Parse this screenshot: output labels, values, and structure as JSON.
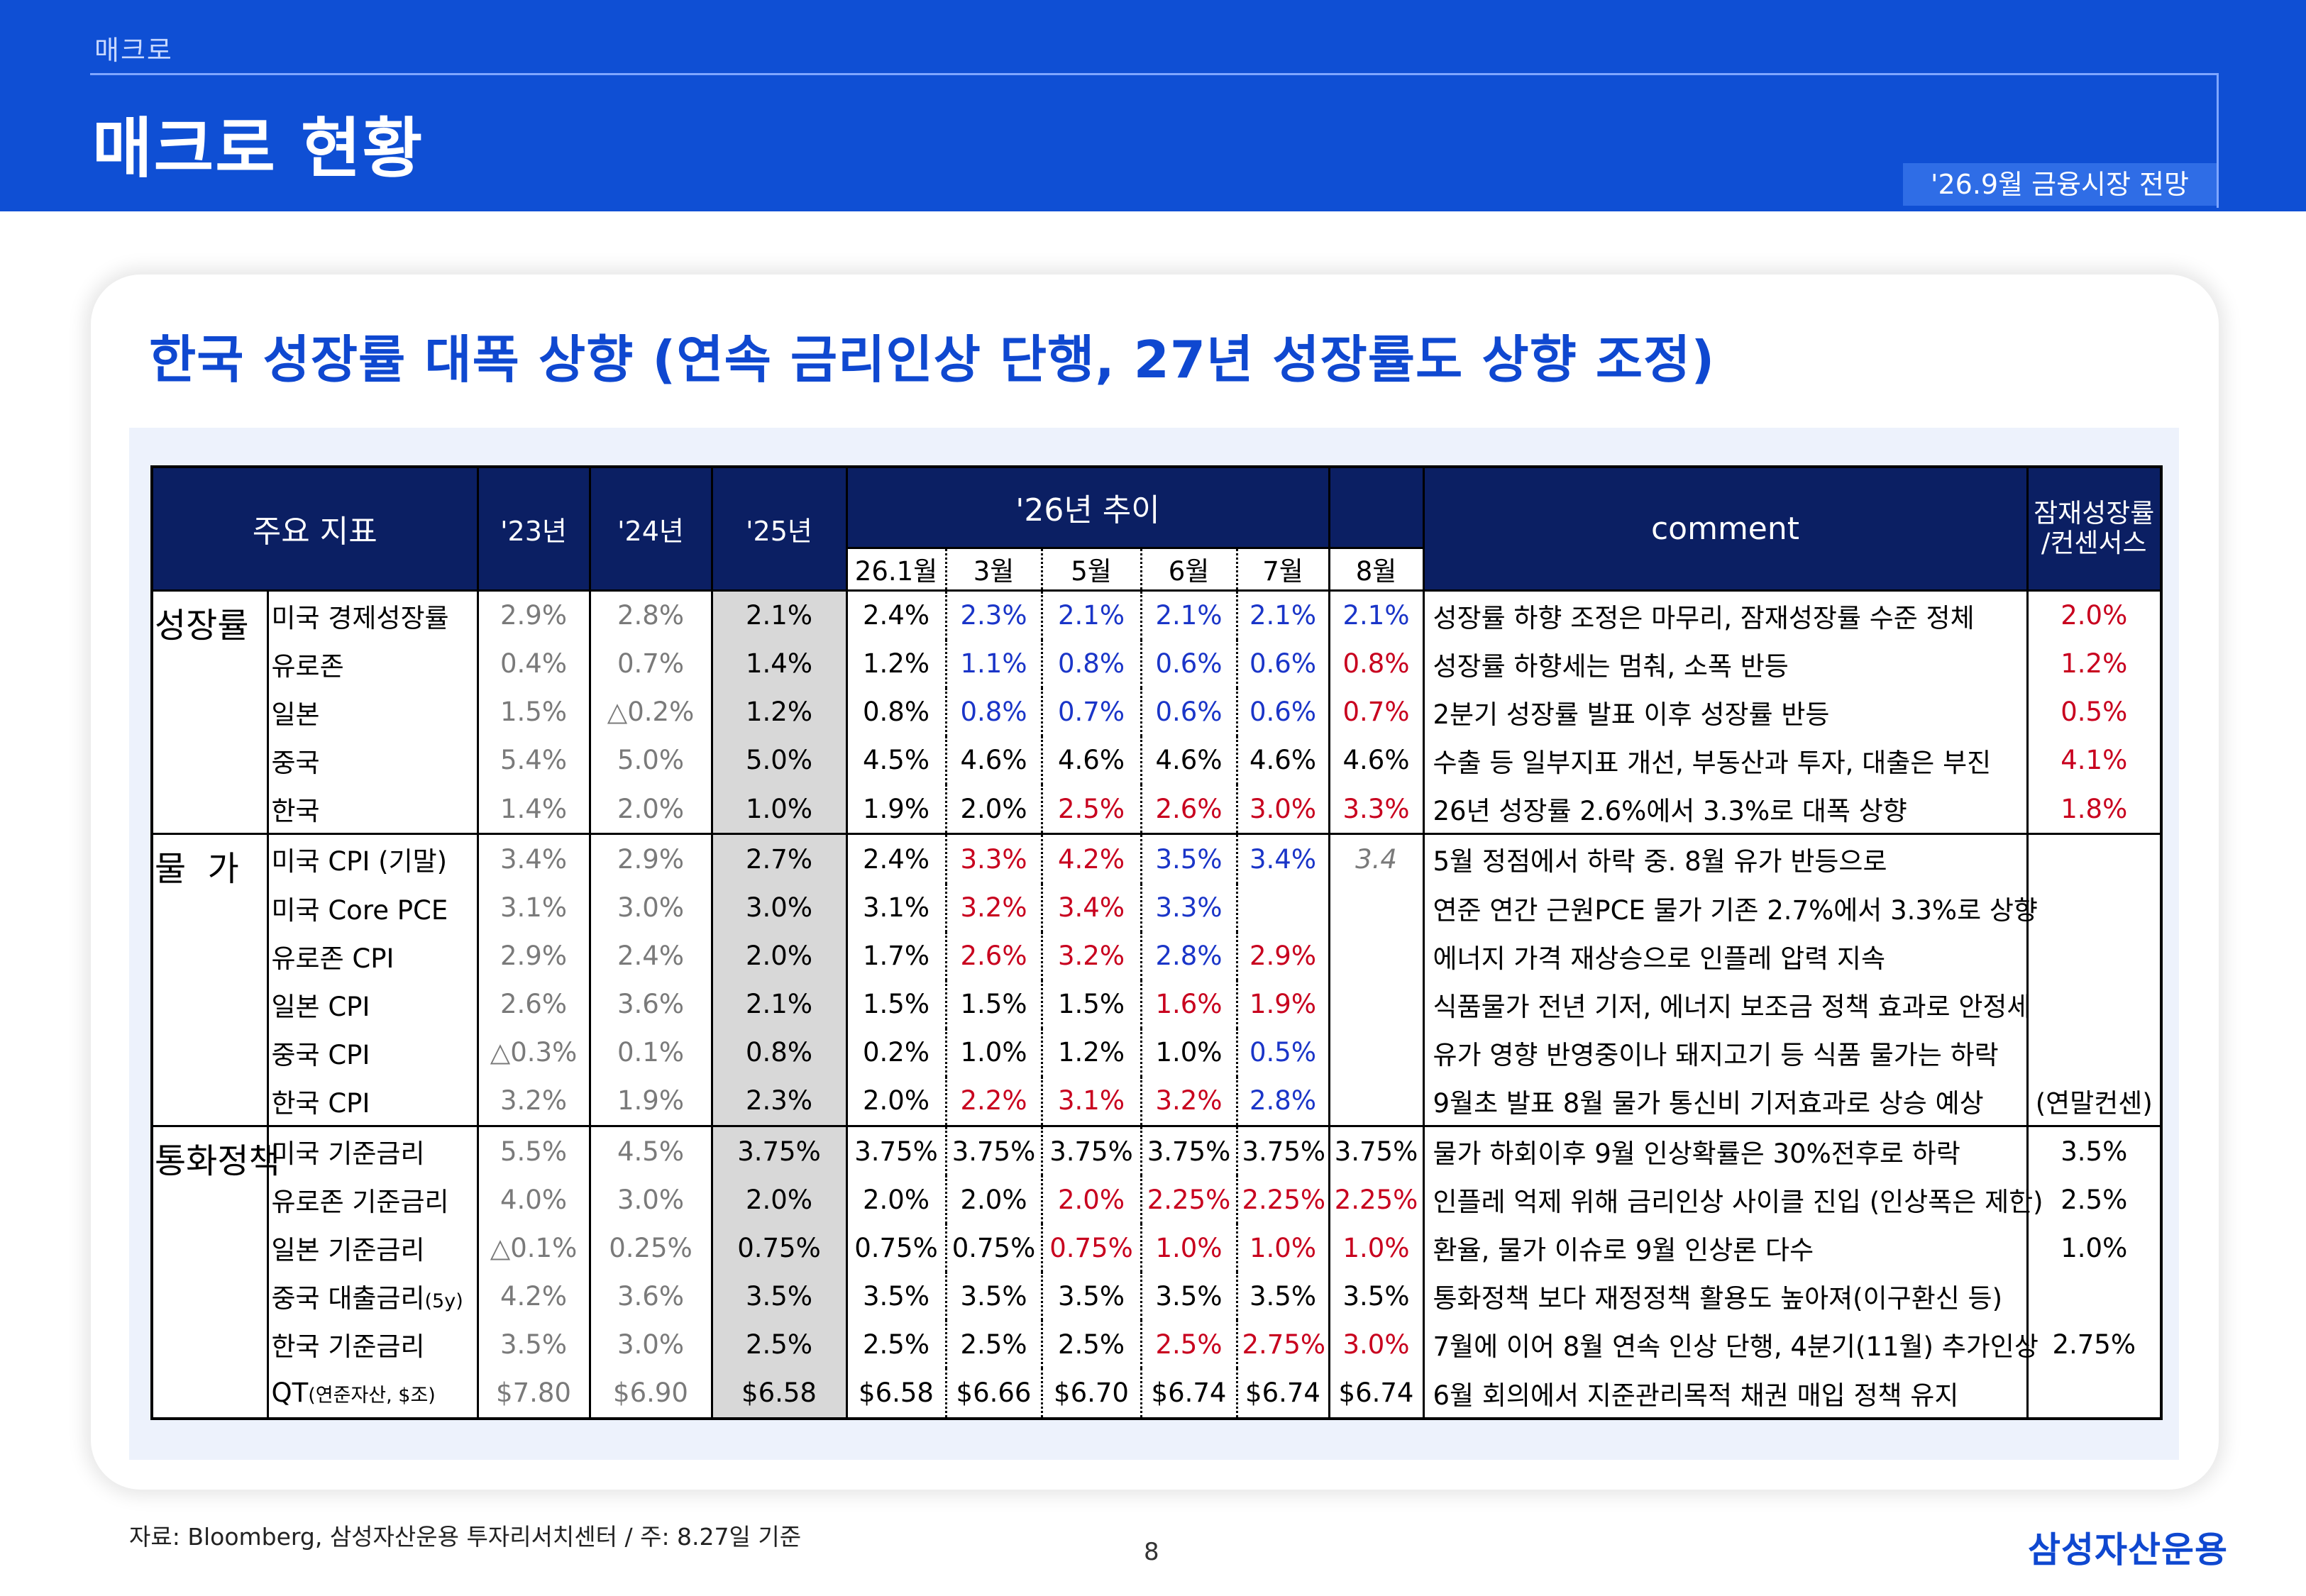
{
  "header": {
    "crumb": "매크로",
    "title": "매크로 현황",
    "report": "'26.9월 금융시장 전망"
  },
  "headline": "한국 성장률 대폭 상향 (연속 금리인상 단행, 27년 성장률도 상향 조정)",
  "table": {
    "headers": {
      "indicator": "주요 지표",
      "y23": "'23년",
      "y24": "'24년",
      "y25": "'25년",
      "trend": "'26년 추이",
      "comment": "comment",
      "potential": "잠재성장률\n/컨센서스",
      "months": [
        "26.1월",
        "3월",
        "5월",
        "6월",
        "7월",
        "8월"
      ]
    },
    "groups": [
      {
        "name": "성장률",
        "rows": [
          {
            "name": "미국 경제성장률",
            "y23": "2.9%",
            "y24": "2.8%",
            "y25": "2.1%",
            "m": [
              "2.4%",
              "2.3%",
              "2.1%",
              "2.1%",
              "2.1%",
              "2.1%"
            ],
            "comment": "성장률 하향 조정은 마무리, 잠재성장률 수준 정체",
            "potential": "2.0%"
          },
          {
            "name": "유로존",
            "y23": "0.4%",
            "y24": "0.7%",
            "y25": "1.4%",
            "m": [
              "1.2%",
              "1.1%",
              "0.8%",
              "0.6%",
              "0.6%",
              "0.8%"
            ],
            "comment": "성장률 하향세는 멈춰, 소폭 반등",
            "potential": "1.2%"
          },
          {
            "name": "일본",
            "y23": "1.5%",
            "y24": "△0.2%",
            "y25": "1.2%",
            "m": [
              "0.8%",
              "0.8%",
              "0.7%",
              "0.6%",
              "0.6%",
              "0.7%"
            ],
            "comment": "2분기 성장률 발표 이후 성장률 반등",
            "potential": "0.5%"
          },
          {
            "name": "중국",
            "y23": "5.4%",
            "y24": "5.0%",
            "y25": "5.0%",
            "m": [
              "4.5%",
              "4.6%",
              "4.6%",
              "4.6%",
              "4.6%",
              "4.6%"
            ],
            "comment": "수출 등 일부지표 개선, 부동산과 투자, 대출은 부진",
            "potential": "4.1%"
          },
          {
            "name": "한국",
            "y23": "1.4%",
            "y24": "2.0%",
            "y25": "1.0%",
            "m": [
              "1.9%",
              "2.0%",
              "2.5%",
              "2.6%",
              "3.0%",
              "3.3%"
            ],
            "comment": "26년 성장률 2.6%에서 3.3%로 대폭 상향",
            "potential": "1.8%"
          }
        ]
      },
      {
        "name": "물  가",
        "rows": [
          {
            "name": "미국 CPI (기말)",
            "y23": "3.4%",
            "y24": "2.9%",
            "y25": "2.7%",
            "m": [
              "2.4%",
              "3.3%",
              "4.2%",
              "3.5%",
              "3.4%",
              "3.4"
            ],
            "comment": "5월 정점에서 하락 중. 8월 유가 반등으로",
            "potential": ""
          },
          {
            "name": "미국 Core PCE",
            "y23": "3.1%",
            "y24": "3.0%",
            "y25": "3.0%",
            "m": [
              "3.1%",
              "3.2%",
              "3.4%",
              "3.3%",
              "",
              ""
            ],
            "comment": "연준 연간 근원PCE 물가 기존 2.7%에서 3.3%로 상향",
            "potential": ""
          },
          {
            "name": "유로존 CPI",
            "y23": "2.9%",
            "y24": "2.4%",
            "y25": "2.0%",
            "m": [
              "1.7%",
              "2.6%",
              "3.2%",
              "2.8%",
              "2.9%",
              ""
            ],
            "comment": "에너지 가격 재상승으로 인플레 압력 지속",
            "potential": ""
          },
          {
            "name": "일본 CPI",
            "y23": "2.6%",
            "y24": "3.6%",
            "y25": "2.1%",
            "m": [
              "1.5%",
              "1.5%",
              "1.5%",
              "1.6%",
              "1.9%",
              ""
            ],
            "comment": "식품물가 전년 기저, 에너지 보조금 정책 효과로 안정세",
            "potential": ""
          },
          {
            "name": "중국 CPI",
            "y23": "△0.3%",
            "y24": "0.1%",
            "y25": "0.8%",
            "m": [
              "0.2%",
              "1.0%",
              "1.2%",
              "1.0%",
              "0.5%",
              ""
            ],
            "comment": "유가 영향 반영중이나 돼지고기 등 식품 물가는 하락",
            "potential": ""
          },
          {
            "name": "한국 CPI",
            "y23": "3.2%",
            "y24": "1.9%",
            "y25": "2.3%",
            "m": [
              "2.0%",
              "2.2%",
              "3.1%",
              "3.2%",
              "2.8%",
              ""
            ],
            "comment": "9월초 발표 8월 물가 통신비 기저효과로 상승 예상",
            "potential": "(연말컨센)"
          }
        ]
      },
      {
        "name": "통화정책",
        "rows": [
          {
            "name": "미국 기준금리",
            "y23": "5.5%",
            "y24": "4.5%",
            "y25": "3.75%",
            "m": [
              "3.75%",
              "3.75%",
              "3.75%",
              "3.75%",
              "3.75%",
              "3.75%"
            ],
            "comment": "물가 하회이후 9월 인상확률은 30%전후로 하락",
            "potential": "3.5%"
          },
          {
            "name": "유로존 기준금리",
            "y23": "4.0%",
            "y24": "3.0%",
            "y25": "2.0%",
            "m": [
              "2.0%",
              "2.0%",
              "2.0%",
              "2.25%",
              "2.25%",
              "2.25%"
            ],
            "comment": "인플레 억제 위해 금리인상 사이클 진입 (인상폭은 제한)",
            "potential": "2.5%"
          },
          {
            "name": "일본 기준금리",
            "y23": "△0.1%",
            "y24": "0.25%",
            "y25": "0.75%",
            "m": [
              "0.75%",
              "0.75%",
              "0.75%",
              "1.0%",
              "1.0%",
              "1.0%"
            ],
            "comment": "환율, 물가 이슈로 9월 인상론 다수",
            "potential": "1.0%"
          },
          {
            "name": "중국 대출금리",
            "name_small": "(5y)",
            "y23": "4.2%",
            "y24": "3.6%",
            "y25": "3.5%",
            "m": [
              "3.5%",
              "3.5%",
              "3.5%",
              "3.5%",
              "3.5%",
              "3.5%"
            ],
            "comment": "통화정책 보다 재정정책 활용도 높아져(이구환신 등)",
            "potential": ""
          },
          {
            "name": "한국 기준금리",
            "y23": "3.5%",
            "y24": "3.0%",
            "y25": "2.5%",
            "m": [
              "2.5%",
              "2.5%",
              "2.5%",
              "2.5%",
              "2.75%",
              "3.0%"
            ],
            "comment": "7월에 이어 8월 연속 인상 단행, 4분기(11월) 추가인상",
            "potential": "2.75%"
          },
          {
            "name": "QT",
            "name_small": "(연준자산, $조)",
            "y23": "$7.80",
            "y24": "$6.90",
            "y25": "$6.58",
            "m": [
              "$6.58",
              "$6.66",
              "$6.70",
              "$6.74",
              "$6.74",
              "$6.74"
            ],
            "comment": "6월 회의에서 지준관리목적 채권 매입 정책 유지",
            "potential": ""
          }
        ]
      }
    ]
  },
  "footer": {
    "source": "자료: Bloomberg, 삼성자산운용 투자리서치센터 / 주: 8.27일 기준",
    "page": "8",
    "logo": "삼성자산운용"
  },
  "colors": {
    "header_bg": "#0f4fd4",
    "table_header_bg": "#0b1f63",
    "headline": "#0f48d0",
    "up_red": "#c8001e",
    "down_blue": "#1a35c8",
    "y25_shade": "#d8d8d8"
  }
}
